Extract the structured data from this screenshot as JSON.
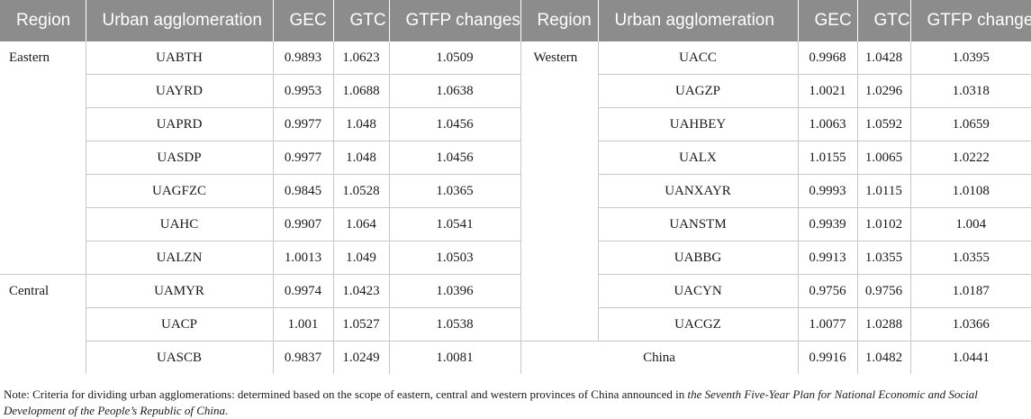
{
  "headers": [
    "Region",
    "Urban agglomeration",
    "GEC",
    "GTC",
    "GTFP changes",
    "Region",
    "Urban agglomeration",
    "GEC",
    "GTC",
    "GTFP changes"
  ],
  "left": {
    "eastern_label": "Eastern",
    "central_label": "Central",
    "rows": [
      {
        "ua": "UABTH",
        "gec": "0.9893",
        "gtc": "1.0623",
        "gtfp": "1.0509"
      },
      {
        "ua": "UAYRD",
        "gec": "0.9953",
        "gtc": "1.0688",
        "gtfp": "1.0638"
      },
      {
        "ua": "UAPRD",
        "gec": "0.9977",
        "gtc": "1.048",
        "gtfp": "1.0456"
      },
      {
        "ua": "UASDP",
        "gec": "0.9977",
        "gtc": "1.048",
        "gtfp": "1.0456"
      },
      {
        "ua": "UAGFZC",
        "gec": "0.9845",
        "gtc": "1.0528",
        "gtfp": "1.0365"
      },
      {
        "ua": "UAHC",
        "gec": "0.9907",
        "gtc": "1.064",
        "gtfp": "1.0541"
      },
      {
        "ua": "UALZN",
        "gec": "1.0013",
        "gtc": "1.049",
        "gtfp": "1.0503"
      },
      {
        "ua": "UAMYR",
        "gec": "0.9974",
        "gtc": "1.0423",
        "gtfp": "1.0396"
      },
      {
        "ua": "UACP",
        "gec": "1.001",
        "gtc": "1.0527",
        "gtfp": "1.0538"
      },
      {
        "ua": "UASCB",
        "gec": "0.9837",
        "gtc": "1.0249",
        "gtfp": "1.0081"
      }
    ]
  },
  "right": {
    "western_label": "Western",
    "rows": [
      {
        "ua": "UACC",
        "gec": "0.9968",
        "gtc": "1.0428",
        "gtfp": "1.0395"
      },
      {
        "ua": "UAGZP",
        "gec": "1.0021",
        "gtc": "1.0296",
        "gtfp": "1.0318"
      },
      {
        "ua": "UAHBEY",
        "gec": "1.0063",
        "gtc": "1.0592",
        "gtfp": "1.0659"
      },
      {
        "ua": "UALX",
        "gec": "1.0155",
        "gtc": "1.0065",
        "gtfp": "1.0222"
      },
      {
        "ua": "UANXAYR",
        "gec": "0.9993",
        "gtc": "1.0115",
        "gtfp": "1.0108"
      },
      {
        "ua": "UANSTM",
        "gec": "0.9939",
        "gtc": "1.0102",
        "gtfp": "1.004"
      },
      {
        "ua": "UABBG",
        "gec": "0.9913",
        "gtc": "1.0355",
        "gtfp": "1.0355"
      },
      {
        "ua": "UACYN",
        "gec": "0.9756",
        "gtc": "0.9756",
        "gtfp": "1.0187"
      },
      {
        "ua": "UACGZ",
        "gec": "1.0077",
        "gtc": "1.0288",
        "gtfp": "1.0366"
      }
    ],
    "china": {
      "label": "China",
      "gec": "0.9916",
      "gtc": "1.0482",
      "gtfp": "1.0441"
    }
  },
  "note": {
    "prefix": "Note: Criteria for dividing urban agglomerations: determined based on the scope of eastern, central and western provinces of China announced in ",
    "italic": "the Seventh Five-Year Plan for National Economic and Social Development of the People’s Republic of China",
    "suffix": "."
  }
}
